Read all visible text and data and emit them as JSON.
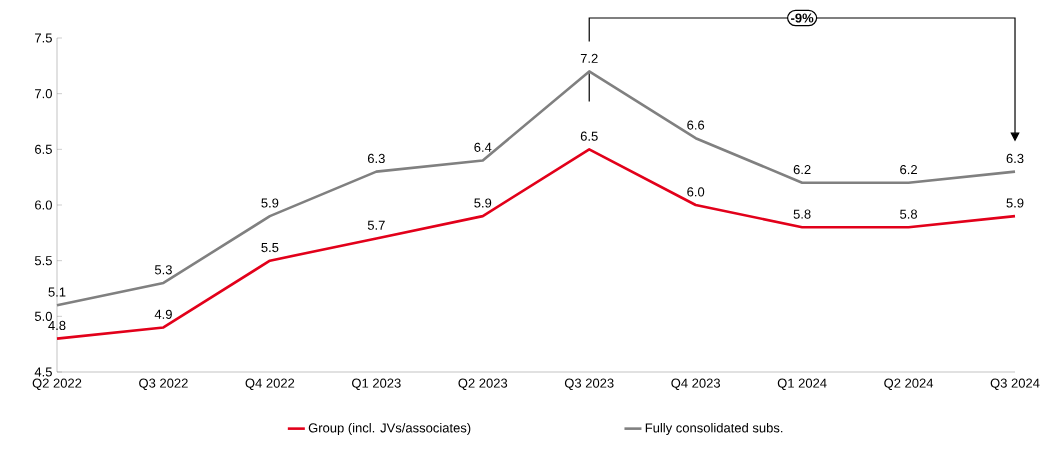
{
  "chart_data": {
    "type": "line",
    "categories": [
      "Q2 2022",
      "Q3 2022",
      "Q4 2022",
      "Q1 2023",
      "Q2 2023",
      "Q3 2023",
      "Q4 2023",
      "Q1 2024",
      "Q2 2024",
      "Q3 2024"
    ],
    "series": [
      {
        "name": "Group (incl. JVs/associates)",
        "color": "#e2001a",
        "values": [
          4.8,
          4.9,
          5.5,
          5.7,
          5.9,
          6.5,
          6.0,
          5.8,
          5.8,
          5.9
        ],
        "value_labels": [
          "4.8",
          "4.9",
          "5.5",
          "5.7",
          "5.9",
          "6.5",
          "6.0",
          "5.8",
          "5.8",
          "5.9"
        ]
      },
      {
        "name": "Fully consolidated subs.",
        "color": "#808080",
        "values": [
          5.1,
          5.3,
          5.9,
          6.3,
          6.4,
          7.2,
          6.6,
          6.2,
          6.2,
          6.3
        ],
        "value_labels": [
          "5.1",
          "5.3",
          "5.9",
          "6.3",
          "6.4",
          "7.2",
          "6.6",
          "6.2",
          "6.2",
          "6.3"
        ]
      }
    ],
    "ylim": [
      4.5,
      7.5
    ],
    "yticks": [
      4.5,
      {
        "value": 5.0,
        "label": "5.0"
      },
      5.5,
      {
        "value": 6.0,
        "label": "6.0"
      },
      6.5,
      {
        "value": 7.0,
        "label": "7.0"
      },
      7.5
    ],
    "grid": false,
    "legend": "bottom",
    "marker": "none",
    "line_style": "solid",
    "annotations": [
      "-9%"
    ]
  }
}
